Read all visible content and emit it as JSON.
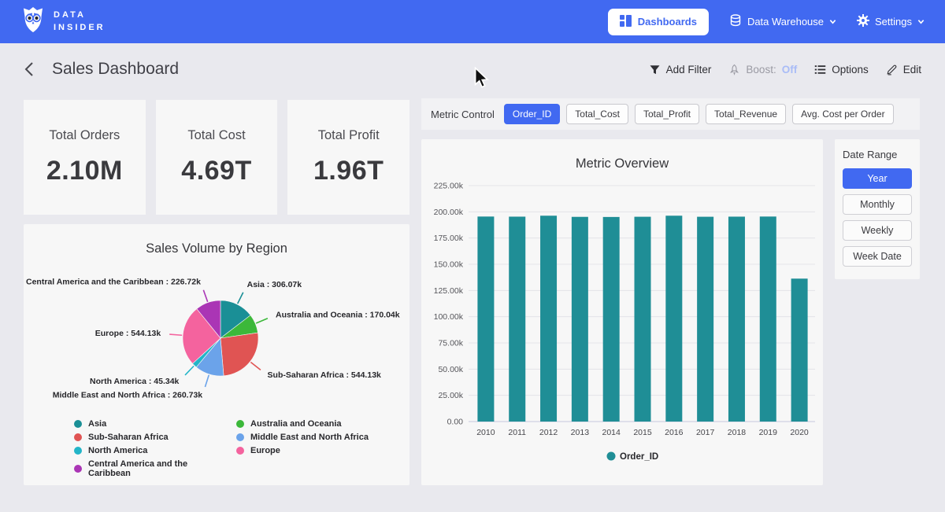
{
  "colors": {
    "accent": "#4169f1",
    "bar_teal": "#1f8e96",
    "page_bg": "#e9e9ee",
    "card_bg": "#f7f7f7",
    "boost_off": "#a9bcf7"
  },
  "nav": {
    "brand": {
      "line1": "DATA",
      "line2": "INSIDER"
    },
    "dashboards_label": "Dashboards",
    "warehouse_label": "Data Warehouse",
    "settings_label": "Settings"
  },
  "header": {
    "title": "Sales Dashboard",
    "add_filter_label": "Add Filter",
    "boost_label": "Boost:",
    "boost_value": "Off",
    "options_label": "Options",
    "edit_label": "Edit"
  },
  "kpis": [
    {
      "title": "Total Orders",
      "value": "2.10M"
    },
    {
      "title": "Total Cost",
      "value": "4.69T"
    },
    {
      "title": "Total Profit",
      "value": "1.96T"
    }
  ],
  "metric_control": {
    "label": "Metric Control",
    "buttons": [
      {
        "label": "Order_ID",
        "active": true
      },
      {
        "label": "Total_Cost",
        "active": false
      },
      {
        "label": "Total_Profit",
        "active": false
      },
      {
        "label": "Total_Revenue",
        "active": false
      },
      {
        "label": "Avg. Cost per Order",
        "active": false
      }
    ]
  },
  "date_range": {
    "label": "Date Range",
    "buttons": [
      {
        "label": "Year",
        "active": true
      },
      {
        "label": "Monthly",
        "active": false
      },
      {
        "label": "Weekly",
        "active": false
      },
      {
        "label": "Week Date",
        "active": false
      }
    ]
  },
  "chart_data": [
    {
      "type": "bar",
      "title": "Metric Overview",
      "categories": [
        "2010",
        "2011",
        "2012",
        "2013",
        "2014",
        "2015",
        "2016",
        "2017",
        "2018",
        "2019",
        "2020"
      ],
      "series": [
        {
          "name": "Order_ID",
          "color": "#1f8e96",
          "values": [
            195500,
            195400,
            196300,
            195200,
            195100,
            195300,
            196300,
            195300,
            195400,
            195500,
            136300
          ]
        }
      ],
      "ylim": [
        0,
        225000
      ],
      "ytick_step": 25000,
      "ytick_labels": [
        "0.00",
        "25.00k",
        "50.00k",
        "75.00k",
        "100.00k",
        "125.00k",
        "150.00k",
        "175.00k",
        "200.00k",
        "225.00k"
      ],
      "grid": true,
      "legend_position": "bottom"
    },
    {
      "type": "pie",
      "title": "Sales Volume by Region",
      "slices": [
        {
          "label": "Asia",
          "value": 306070,
          "display": "Asia : 306.07k",
          "color": "#1a8f96"
        },
        {
          "label": "Australia and Oceania",
          "value": 170040,
          "display": "Australia and Oceania : 170.04k",
          "color": "#3cb83a"
        },
        {
          "label": "Sub-Saharan Africa",
          "value": 544130,
          "display": "Sub-Saharan Africa : 544.13k",
          "color": "#e05453"
        },
        {
          "label": "Middle East and North Africa",
          "value": 260730,
          "display": "Middle East and North Africa : 260.73k",
          "color": "#6ba3ea"
        },
        {
          "label": "North America",
          "value": 45340,
          "display": "North America : 45.34k",
          "color": "#23b5c8"
        },
        {
          "label": "Europe",
          "value": 544130,
          "display": "Europe : 544.13k",
          "color": "#f4639e"
        },
        {
          "label": "Central America and the Caribbean",
          "value": 226720,
          "display": "Central America and the Caribbean : 226.72k",
          "color": "#aa35b5"
        }
      ],
      "legend_position": "bottom"
    }
  ]
}
